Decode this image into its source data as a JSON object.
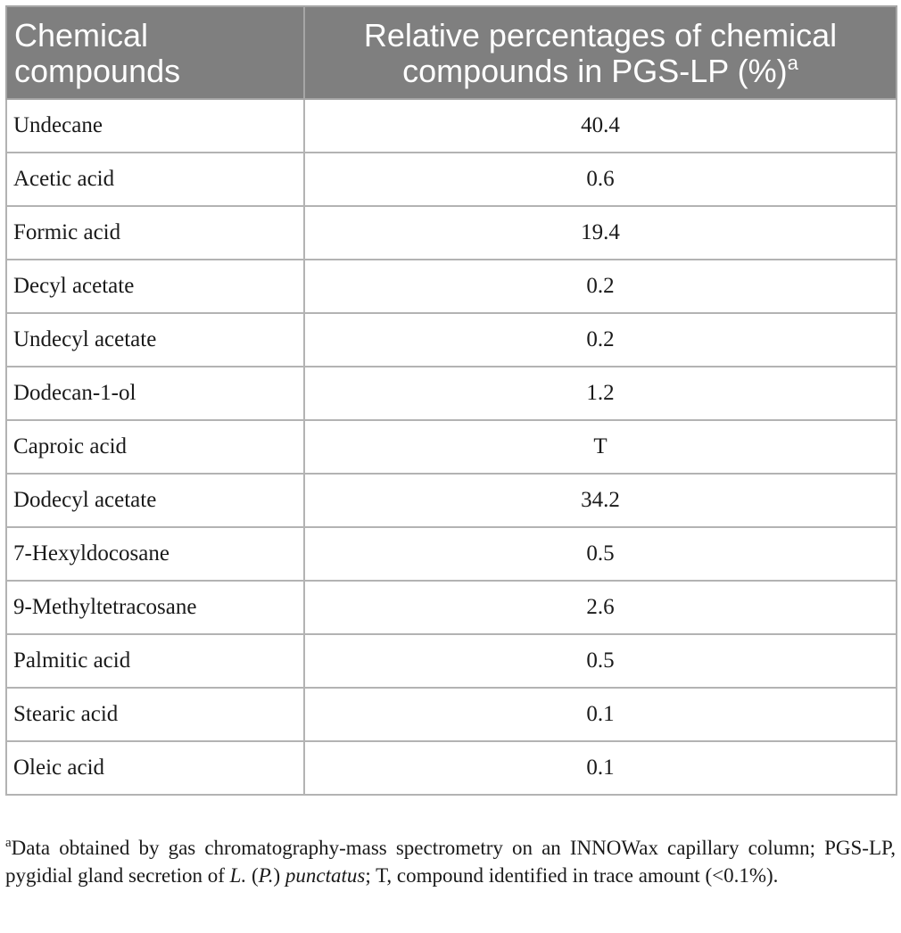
{
  "table": {
    "header": {
      "col1_line1": "Chemical",
      "col1_line2": "compounds",
      "col2_line1": "Relative percentages of chemical",
      "col2_line2": "compounds in PGS-LP (%)",
      "col2_footnote_mark": "a"
    },
    "rows": [
      {
        "compound": "Undecane",
        "percentage": "40.4"
      },
      {
        "compound": "Acetic acid",
        "percentage": "0.6"
      },
      {
        "compound": "Formic acid",
        "percentage": "19.4"
      },
      {
        "compound": "Decyl acetate",
        "percentage": "0.2"
      },
      {
        "compound": "Undecyl acetate",
        "percentage": "0.2"
      },
      {
        "compound": "Dodecan-1-ol",
        "percentage": "1.2"
      },
      {
        "compound": "Caproic acid",
        "percentage": "T"
      },
      {
        "compound": "Dodecyl acetate",
        "percentage": "34.2"
      },
      {
        "compound": "7-Hexyldocosane",
        "percentage": "0.5"
      },
      {
        "compound": "9-Methyltetracosane",
        "percentage": "2.6"
      },
      {
        "compound": "Palmitic acid",
        "percentage": "0.5"
      },
      {
        "compound": "Stearic acid",
        "percentage": "0.1"
      },
      {
        "compound": "Oleic acid",
        "percentage": "0.1"
      }
    ]
  },
  "footnote": {
    "mark": "a",
    "text_part1": "Data obtained by gas chromatography-mass spectrometry on an INNOWax capillary column; PGS-LP, pygidial gland secretion of ",
    "genus_italic": "L.",
    "subgenus_open": " (",
    "subgenus_italic": "P.",
    "subgenus_close": ") ",
    "species_italic": "punctatus",
    "text_part2": "; T, compound identified in trace amount (<0.1%)."
  }
}
